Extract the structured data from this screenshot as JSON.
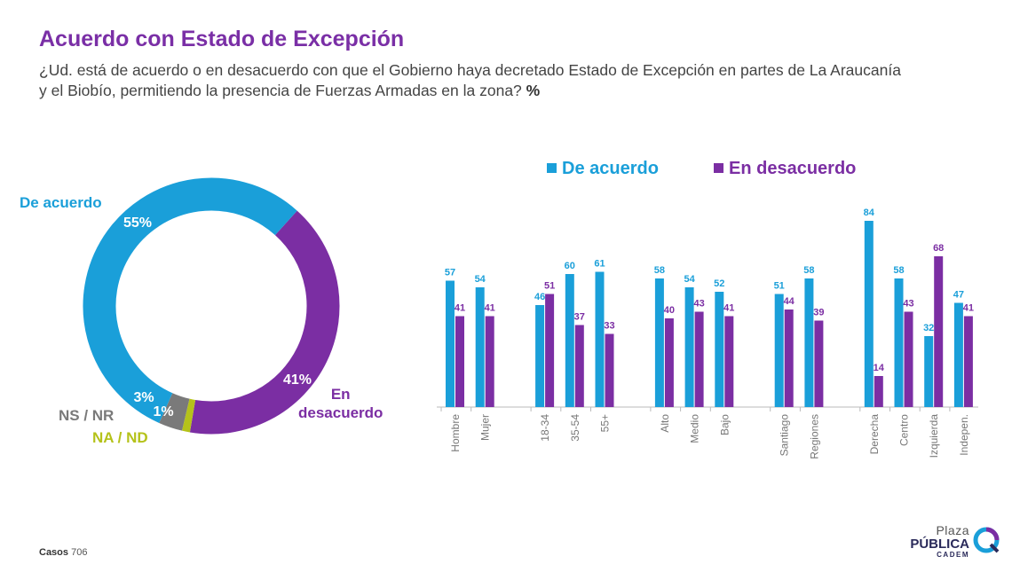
{
  "header": {
    "title": "Acuerdo con Estado de Excepción",
    "question": "¿Ud. está de acuerdo o en desacuerdo con que el Gobierno haya decretado Estado de Excepción en partes de La Araucanía y el Biobío, permitiendo la presencia de Fuerzas Armadas en la zona?",
    "unit": "%"
  },
  "colors": {
    "agree": "#1a9fd9",
    "disagree": "#7b2ea3",
    "nsnr": "#7a7a7a",
    "nand": "#b5c21a"
  },
  "chart_data": [
    {
      "type": "pie",
      "variant": "donut",
      "slices": [
        {
          "label": "De acuerdo",
          "value": 55,
          "value_label": "55%",
          "color": "#1a9fd9"
        },
        {
          "label": "En desacuerdo",
          "value": 41,
          "value_label": "41%",
          "color": "#7b2ea3"
        },
        {
          "label": "NA / ND",
          "value": 1,
          "value_label": "1%",
          "color": "#b5c21a"
        },
        {
          "label": "NS / NR",
          "value": 3,
          "value_label": "3%",
          "color": "#7a7a7a"
        }
      ],
      "label_disagree_line1": "En",
      "label_disagree_line2": "desacuerdo"
    },
    {
      "type": "bar",
      "legend_position": "top",
      "categories": [
        "Hombre",
        "Mujer",
        "18-34",
        "35-54",
        "55+",
        "Alto",
        "Medio",
        "Bajo",
        "Santiago",
        "Regiones",
        "Derecha",
        "Centro",
        "Izquierda",
        "Indepen."
      ],
      "groups": [
        2,
        3,
        3,
        2,
        4
      ],
      "series": [
        {
          "name": "De acuerdo",
          "color": "#1a9fd9",
          "values": [
            57,
            54,
            46,
            60,
            61,
            58,
            54,
            52,
            51,
            58,
            84,
            58,
            32,
            47
          ]
        },
        {
          "name": "En desacuerdo",
          "color": "#7b2ea3",
          "values": [
            41,
            41,
            51,
            37,
            33,
            40,
            43,
            41,
            44,
            39,
            14,
            43,
            68,
            41
          ]
        }
      ],
      "ylim": [
        0,
        100
      ]
    }
  ],
  "footer": {
    "casos_label": "Casos",
    "casos_value": "706"
  },
  "logo": {
    "line1": "Plaza",
    "line2": "PÚBLICA",
    "line3": "CADEM"
  }
}
